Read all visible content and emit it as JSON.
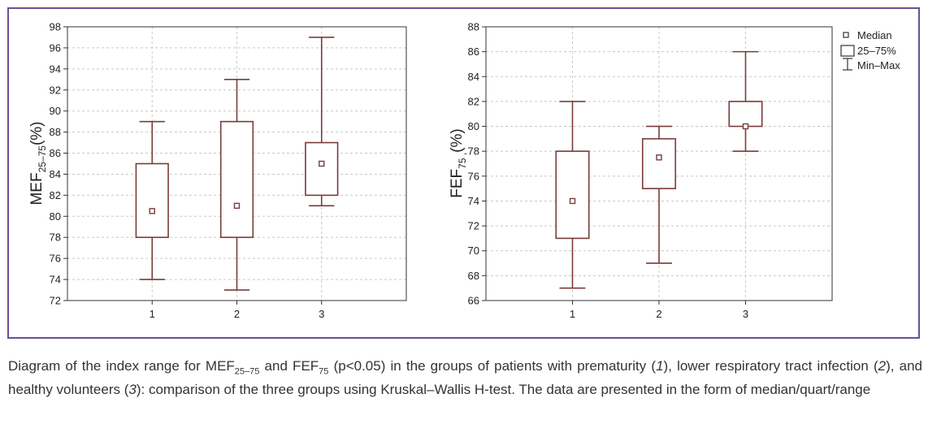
{
  "chart_data": [
    {
      "type": "box",
      "ylabel": "MEF",
      "ylabel_sub": "25–75",
      "ylabel_unit": "(%)",
      "categories": [
        "1",
        "2",
        "3"
      ],
      "yticks": [
        "72",
        "74",
        "76",
        "78",
        "80",
        "82",
        "84",
        "86",
        "88",
        "90",
        "92",
        "94",
        "96",
        "98"
      ],
      "ylim": [
        72,
        98
      ],
      "xlim": [
        0,
        4
      ],
      "grid": true,
      "boxes": [
        {
          "min": 74,
          "q1": 78,
          "median": 80.5,
          "q3": 85,
          "max": 89
        },
        {
          "min": 73,
          "q1": 78,
          "median": 81,
          "q3": 89,
          "max": 93
        },
        {
          "min": 81,
          "q1": 82,
          "median": 85,
          "q3": 87,
          "max": 97
        }
      ]
    },
    {
      "type": "box",
      "ylabel": "FEF",
      "ylabel_sub": "75 ,",
      "ylabel_unit": "(%)",
      "categories": [
        "1",
        "2",
        "3"
      ],
      "yticks": [
        "66",
        "68",
        "70",
        "72",
        "74",
        "76",
        "78",
        "80",
        "82",
        "84",
        "86",
        "88"
      ],
      "ylim": [
        66,
        88
      ],
      "xlim": [
        0,
        4
      ],
      "grid": true,
      "boxes": [
        {
          "min": 67,
          "q1": 71,
          "median": 74,
          "q3": 78,
          "max": 82
        },
        {
          "min": 69,
          "q1": 75,
          "median": 77.5,
          "q3": 79,
          "max": 80
        },
        {
          "min": 78,
          "q1": 80,
          "median": 80,
          "q3": 82,
          "max": 86
        }
      ],
      "legend": {
        "position": "top-right",
        "items": [
          "Median",
          "25–75%",
          "Min–Max"
        ]
      }
    }
  ],
  "colors": {
    "box": "#7a3b3b",
    "frame": "#6b4f9a",
    "grid": "#c8c8c8"
  },
  "caption": {
    "p1": "Diagram of the index range for MEF",
    "sub1": "25–75",
    "p2": " and FEF",
    "sub2": "75",
    "p3": " (p<0.05) in the groups of patients with prematurity (",
    "n1": "1",
    "p4": "), lower respiratory tract infection (",
    "n2": "2",
    "p5": "), and healthy volunteers (",
    "n3": "3",
    "p6": "): comparison of the three groups using Kruskal–Wallis H-test. The data are presented in the form of median/quart/range"
  }
}
